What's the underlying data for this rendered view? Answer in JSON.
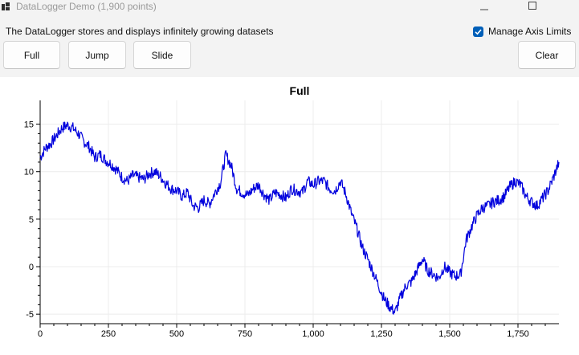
{
  "window": {
    "title": "DataLogger Demo (1,900 points)"
  },
  "description": "The DataLogger stores and displays infinitely growing datasets",
  "manage_axis_limits": {
    "label": "Manage Axis Limits",
    "checked": true
  },
  "buttons": {
    "full": "Full",
    "jump": "Jump",
    "slide": "Slide",
    "clear": "Clear"
  },
  "chart_data": {
    "type": "line",
    "title": "Full",
    "xlabel": "",
    "ylabel": "",
    "xlim": [
      0,
      1900
    ],
    "ylim": [
      -6,
      17.5
    ],
    "x_ticks": [
      0,
      250,
      500,
      750,
      1000,
      1250,
      1500,
      1750
    ],
    "x_tick_labels": [
      "0",
      "250",
      "500",
      "750",
      "1,000",
      "1,250",
      "1,500",
      "1,750"
    ],
    "y_ticks": [
      15,
      10,
      5,
      0,
      -5
    ],
    "y_tick_labels": [
      "15",
      "10",
      "5",
      "0",
      "-5"
    ],
    "grid": true,
    "color": "#0000dd",
    "x": [
      0,
      20,
      40,
      60,
      80,
      100,
      120,
      140,
      160,
      180,
      200,
      220,
      240,
      260,
      280,
      300,
      320,
      340,
      360,
      380,
      400,
      420,
      440,
      460,
      480,
      500,
      520,
      540,
      560,
      580,
      600,
      620,
      640,
      660,
      680,
      700,
      720,
      740,
      760,
      780,
      800,
      820,
      840,
      860,
      880,
      900,
      920,
      940,
      960,
      980,
      1000,
      1020,
      1040,
      1060,
      1080,
      1100,
      1120,
      1140,
      1160,
      1180,
      1200,
      1220,
      1240,
      1260,
      1280,
      1300,
      1320,
      1340,
      1360,
      1380,
      1400,
      1420,
      1440,
      1460,
      1480,
      1500,
      1520,
      1540,
      1560,
      1580,
      1600,
      1620,
      1640,
      1660,
      1680,
      1700,
      1720,
      1740,
      1760,
      1780,
      1800,
      1820,
      1840,
      1860,
      1880,
      1900
    ],
    "values": [
      11.5,
      12.5,
      13.0,
      13.8,
      14.6,
      14.9,
      14.6,
      14.0,
      13.2,
      12.6,
      11.5,
      11.8,
      11.2,
      10.8,
      10.2,
      9.4,
      9.0,
      9.6,
      9.4,
      9.2,
      9.8,
      10.0,
      9.5,
      8.8,
      8.2,
      8.0,
      7.4,
      7.8,
      6.4,
      6.2,
      7.0,
      6.6,
      7.8,
      8.8,
      11.8,
      10.6,
      8.2,
      7.8,
      7.5,
      8.2,
      8.6,
      7.6,
      7.0,
      7.8,
      7.6,
      7.2,
      8.2,
      8.0,
      7.8,
      9.0,
      8.6,
      9.0,
      9.0,
      8.2,
      8.0,
      9.0,
      7.6,
      5.6,
      4.0,
      2.0,
      0.8,
      -0.6,
      -2.0,
      -3.4,
      -4.2,
      -4.8,
      -3.2,
      -2.0,
      -1.6,
      -0.4,
      0.8,
      -0.4,
      -0.8,
      -1.2,
      0.0,
      -0.6,
      -1.0,
      -0.8,
      2.8,
      4.2,
      5.4,
      6.2,
      6.4,
      6.8,
      7.0,
      7.4,
      8.4,
      9.0,
      8.6,
      7.4,
      6.8,
      6.4,
      7.2,
      8.0,
      9.4,
      11.0
    ]
  }
}
